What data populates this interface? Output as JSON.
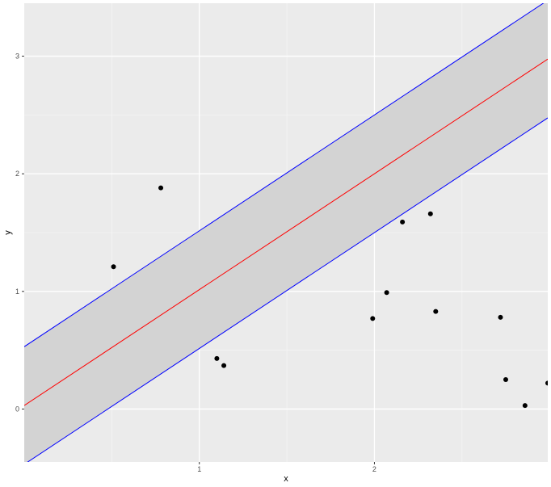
{
  "chart_data": {
    "type": "scatter",
    "title": "",
    "xlabel": "x",
    "ylabel": "y",
    "xlim": [
      0.0,
      2.99
    ],
    "ylim": [
      -0.45,
      3.45
    ],
    "x_ticks": [
      1,
      2
    ],
    "x_tick_labels": [
      "1",
      "2"
    ],
    "y_ticks": [
      0,
      1,
      2,
      3
    ],
    "y_tick_labels": [
      "0",
      "1",
      "2",
      "3"
    ],
    "grid": true,
    "legend": "none",
    "colors": {
      "panel_background": "#ebebeb",
      "grid_major": "#ffffff",
      "grid_minor": "#f4f4f4",
      "band_fill": "#d3d3d3",
      "center_line": "#ff0000",
      "bound_lines": "#0000ff",
      "points": "#000000",
      "tick_text": "#4d4d4d",
      "tick_mark": "#333333"
    },
    "points": [
      {
        "x": 0.51,
        "y": 1.21
      },
      {
        "x": 0.78,
        "y": 1.88
      },
      {
        "x": 1.1,
        "y": 0.43
      },
      {
        "x": 1.14,
        "y": 0.37
      },
      {
        "x": 1.99,
        "y": 0.77
      },
      {
        "x": 2.07,
        "y": 0.99
      },
      {
        "x": 2.16,
        "y": 1.59
      },
      {
        "x": 2.32,
        "y": 1.66
      },
      {
        "x": 2.35,
        "y": 0.83
      },
      {
        "x": 2.72,
        "y": 0.78
      },
      {
        "x": 2.75,
        "y": 0.25
      },
      {
        "x": 2.86,
        "y": 0.03
      },
      {
        "x": 2.99,
        "y": 0.22
      }
    ],
    "center_line": {
      "intercept": 0.03,
      "slope": 0.985
    },
    "band": {
      "upper_offset": 0.5,
      "lower_offset": -0.5
    }
  }
}
